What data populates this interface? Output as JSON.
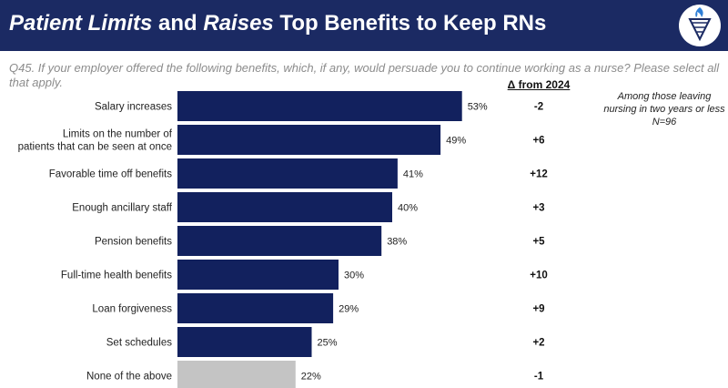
{
  "header": {
    "title_part1": "Patient Limits",
    "title_part2": " and ",
    "title_part3": "Raises",
    "title_part4": " Top Benefits to Keep RNs",
    "logo_icon": "torch-shield-icon"
  },
  "question": "Q45. If your employer offered the following benefits, which, if any, would persuade you to continue working as a nurse? Please select all that apply.",
  "delta_header": "Δ from 2024",
  "note": {
    "line1": "Among those leaving",
    "line2": "nursing in two years or less",
    "line3": "N=96"
  },
  "colors": {
    "bar": "#12215e",
    "none_bar": "#c4c4c4",
    "header_bg": "#1b2a63"
  },
  "chart_data": {
    "type": "bar",
    "orientation": "horizontal",
    "categories": [
      [
        "Salary increases"
      ],
      [
        "Limits on the number of",
        "patients that can be seen at once"
      ],
      [
        "Favorable time off benefits"
      ],
      [
        "Enough ancillary staff"
      ],
      [
        "Pension benefits"
      ],
      [
        "Full-time health benefits"
      ],
      [
        "Loan forgiveness"
      ],
      [
        "Set schedules"
      ],
      [
        "None of the above"
      ]
    ],
    "values": [
      53,
      49,
      41,
      40,
      38,
      30,
      29,
      25,
      22
    ],
    "value_labels": [
      "53%",
      "49%",
      "41%",
      "40%",
      "38%",
      "30%",
      "29%",
      "25%",
      "22%"
    ],
    "deltas": [
      "-2",
      "+6",
      "+12",
      "+3",
      "+5",
      "+10",
      "+9",
      "+2",
      "-1"
    ],
    "unit": "%"
  }
}
